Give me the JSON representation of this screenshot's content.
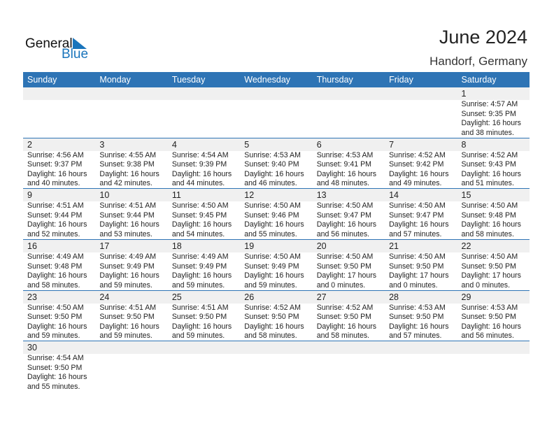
{
  "logo": {
    "general": "General",
    "blue": "Blue"
  },
  "header": {
    "title": "June 2024",
    "location": "Handorf, Germany"
  },
  "weekdays": [
    "Sunday",
    "Monday",
    "Tuesday",
    "Wednesday",
    "Thursday",
    "Friday",
    "Saturday"
  ],
  "colors": {
    "accent": "#2e74b5",
    "logo_blue": "#1a75bc"
  },
  "weeks": [
    [
      null,
      null,
      null,
      null,
      null,
      null,
      {
        "day": "1",
        "sunrise": "Sunrise: 4:57 AM",
        "sunset": "Sunset: 9:35 PM",
        "daylight1": "Daylight: 16 hours",
        "daylight2": "and 38 minutes."
      }
    ],
    [
      {
        "day": "2",
        "sunrise": "Sunrise: 4:56 AM",
        "sunset": "Sunset: 9:37 PM",
        "daylight1": "Daylight: 16 hours",
        "daylight2": "and 40 minutes."
      },
      {
        "day": "3",
        "sunrise": "Sunrise: 4:55 AM",
        "sunset": "Sunset: 9:38 PM",
        "daylight1": "Daylight: 16 hours",
        "daylight2": "and 42 minutes."
      },
      {
        "day": "4",
        "sunrise": "Sunrise: 4:54 AM",
        "sunset": "Sunset: 9:39 PM",
        "daylight1": "Daylight: 16 hours",
        "daylight2": "and 44 minutes."
      },
      {
        "day": "5",
        "sunrise": "Sunrise: 4:53 AM",
        "sunset": "Sunset: 9:40 PM",
        "daylight1": "Daylight: 16 hours",
        "daylight2": "and 46 minutes."
      },
      {
        "day": "6",
        "sunrise": "Sunrise: 4:53 AM",
        "sunset": "Sunset: 9:41 PM",
        "daylight1": "Daylight: 16 hours",
        "daylight2": "and 48 minutes."
      },
      {
        "day": "7",
        "sunrise": "Sunrise: 4:52 AM",
        "sunset": "Sunset: 9:42 PM",
        "daylight1": "Daylight: 16 hours",
        "daylight2": "and 49 minutes."
      },
      {
        "day": "8",
        "sunrise": "Sunrise: 4:52 AM",
        "sunset": "Sunset: 9:43 PM",
        "daylight1": "Daylight: 16 hours",
        "daylight2": "and 51 minutes."
      }
    ],
    [
      {
        "day": "9",
        "sunrise": "Sunrise: 4:51 AM",
        "sunset": "Sunset: 9:44 PM",
        "daylight1": "Daylight: 16 hours",
        "daylight2": "and 52 minutes."
      },
      {
        "day": "10",
        "sunrise": "Sunrise: 4:51 AM",
        "sunset": "Sunset: 9:44 PM",
        "daylight1": "Daylight: 16 hours",
        "daylight2": "and 53 minutes."
      },
      {
        "day": "11",
        "sunrise": "Sunrise: 4:50 AM",
        "sunset": "Sunset: 9:45 PM",
        "daylight1": "Daylight: 16 hours",
        "daylight2": "and 54 minutes."
      },
      {
        "day": "12",
        "sunrise": "Sunrise: 4:50 AM",
        "sunset": "Sunset: 9:46 PM",
        "daylight1": "Daylight: 16 hours",
        "daylight2": "and 55 minutes."
      },
      {
        "day": "13",
        "sunrise": "Sunrise: 4:50 AM",
        "sunset": "Sunset: 9:47 PM",
        "daylight1": "Daylight: 16 hours",
        "daylight2": "and 56 minutes."
      },
      {
        "day": "14",
        "sunrise": "Sunrise: 4:50 AM",
        "sunset": "Sunset: 9:47 PM",
        "daylight1": "Daylight: 16 hours",
        "daylight2": "and 57 minutes."
      },
      {
        "day": "15",
        "sunrise": "Sunrise: 4:50 AM",
        "sunset": "Sunset: 9:48 PM",
        "daylight1": "Daylight: 16 hours",
        "daylight2": "and 58 minutes."
      }
    ],
    [
      {
        "day": "16",
        "sunrise": "Sunrise: 4:49 AM",
        "sunset": "Sunset: 9:48 PM",
        "daylight1": "Daylight: 16 hours",
        "daylight2": "and 58 minutes."
      },
      {
        "day": "17",
        "sunrise": "Sunrise: 4:49 AM",
        "sunset": "Sunset: 9:49 PM",
        "daylight1": "Daylight: 16 hours",
        "daylight2": "and 59 minutes."
      },
      {
        "day": "18",
        "sunrise": "Sunrise: 4:49 AM",
        "sunset": "Sunset: 9:49 PM",
        "daylight1": "Daylight: 16 hours",
        "daylight2": "and 59 minutes."
      },
      {
        "day": "19",
        "sunrise": "Sunrise: 4:50 AM",
        "sunset": "Sunset: 9:49 PM",
        "daylight1": "Daylight: 16 hours",
        "daylight2": "and 59 minutes."
      },
      {
        "day": "20",
        "sunrise": "Sunrise: 4:50 AM",
        "sunset": "Sunset: 9:50 PM",
        "daylight1": "Daylight: 17 hours",
        "daylight2": "and 0 minutes."
      },
      {
        "day": "21",
        "sunrise": "Sunrise: 4:50 AM",
        "sunset": "Sunset: 9:50 PM",
        "daylight1": "Daylight: 17 hours",
        "daylight2": "and 0 minutes."
      },
      {
        "day": "22",
        "sunrise": "Sunrise: 4:50 AM",
        "sunset": "Sunset: 9:50 PM",
        "daylight1": "Daylight: 17 hours",
        "daylight2": "and 0 minutes."
      }
    ],
    [
      {
        "day": "23",
        "sunrise": "Sunrise: 4:50 AM",
        "sunset": "Sunset: 9:50 PM",
        "daylight1": "Daylight: 16 hours",
        "daylight2": "and 59 minutes."
      },
      {
        "day": "24",
        "sunrise": "Sunrise: 4:51 AM",
        "sunset": "Sunset: 9:50 PM",
        "daylight1": "Daylight: 16 hours",
        "daylight2": "and 59 minutes."
      },
      {
        "day": "25",
        "sunrise": "Sunrise: 4:51 AM",
        "sunset": "Sunset: 9:50 PM",
        "daylight1": "Daylight: 16 hours",
        "daylight2": "and 59 minutes."
      },
      {
        "day": "26",
        "sunrise": "Sunrise: 4:52 AM",
        "sunset": "Sunset: 9:50 PM",
        "daylight1": "Daylight: 16 hours",
        "daylight2": "and 58 minutes."
      },
      {
        "day": "27",
        "sunrise": "Sunrise: 4:52 AM",
        "sunset": "Sunset: 9:50 PM",
        "daylight1": "Daylight: 16 hours",
        "daylight2": "and 58 minutes."
      },
      {
        "day": "28",
        "sunrise": "Sunrise: 4:53 AM",
        "sunset": "Sunset: 9:50 PM",
        "daylight1": "Daylight: 16 hours",
        "daylight2": "and 57 minutes."
      },
      {
        "day": "29",
        "sunrise": "Sunrise: 4:53 AM",
        "sunset": "Sunset: 9:50 PM",
        "daylight1": "Daylight: 16 hours",
        "daylight2": "and 56 minutes."
      }
    ],
    [
      {
        "day": "30",
        "sunrise": "Sunrise: 4:54 AM",
        "sunset": "Sunset: 9:50 PM",
        "daylight1": "Daylight: 16 hours",
        "daylight2": "and 55 minutes."
      },
      null,
      null,
      null,
      null,
      null,
      null
    ]
  ]
}
